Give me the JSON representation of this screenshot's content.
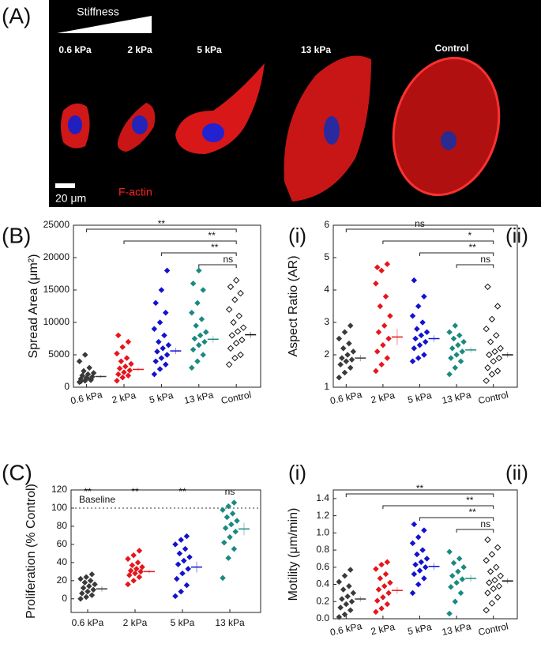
{
  "panel_labels": [
    "(A)",
    "(B)",
    "(C)"
  ],
  "image_panel": {
    "gradient_label": "Stiffness",
    "conditions": [
      "0.6 kPa",
      "2 kPa",
      "5 kPa",
      "13 kPa",
      "Control"
    ],
    "scale_bar": "20 μm",
    "stain": "F-actin"
  },
  "chart_data": [
    {
      "type": "strip",
      "panel": "(i)",
      "y_label": "Spread Area (μm²)",
      "ylim": [
        0,
        25000
      ],
      "yticks": [
        0,
        5000,
        10000,
        15000,
        20000,
        25000
      ],
      "categories": [
        "0.6 kPa",
        "2 kPa",
        "5 kPa",
        "13 kPa",
        "Control"
      ],
      "groups": [
        {
          "color": "#3a3a3a",
          "values": [
            800,
            1000,
            1200,
            1300,
            1500,
            1600,
            1800,
            2000,
            2200,
            2500,
            3000,
            4000,
            5000,
            1100,
            900,
            1400
          ],
          "mean": 1650,
          "error": 200
        },
        {
          "color": "#e8141b",
          "values": [
            1000,
            1500,
            1800,
            2000,
            2300,
            2600,
            2900,
            3200,
            3600,
            4000,
            4500,
            5200,
            6200,
            7000,
            8000
          ],
          "mean": 2750,
          "error": 300
        },
        {
          "color": "#1212d0",
          "values": [
            2000,
            2800,
            3500,
            4000,
            4500,
            5000,
            5500,
            6000,
            6500,
            7000,
            8000,
            9000,
            10000,
            11500,
            13000,
            15000,
            18000
          ],
          "mean": 5600,
          "error": 500
        },
        {
          "color": "#1a8a80",
          "values": [
            3000,
            4000,
            5000,
            5800,
            6500,
            7000,
            7500,
            8000,
            8500,
            9500,
            10500,
            11500,
            13000,
            15000,
            16000,
            18000
          ],
          "mean": 7400,
          "error": 500
        },
        {
          "color": "#111111",
          "open": true,
          "values": [
            3500,
            4500,
            5000,
            6000,
            6800,
            7300,
            8000,
            8600,
            9200,
            10000,
            11000,
            12000,
            13500,
            14500,
            15500,
            16500
          ],
          "mean": 8100,
          "error": 450
        }
      ],
      "comparisons": [
        {
          "from": 0,
          "to": 4,
          "label": "**"
        },
        {
          "from": 1,
          "to": 4,
          "label": "**"
        },
        {
          "from": 2,
          "to": 4,
          "label": "**"
        },
        {
          "from": 3,
          "to": 4,
          "label": "ns"
        }
      ]
    },
    {
      "type": "strip",
      "panel": "(ii)",
      "y_label": "Aspect Ratio (AR)",
      "ylim": [
        1,
        6
      ],
      "yticks": [
        1,
        2,
        3,
        4,
        5,
        6
      ],
      "categories": [
        "0.6 kPa",
        "2 kPa",
        "5 kPa",
        "13 kPa",
        "Control"
      ],
      "groups": [
        {
          "color": "#3a3a3a",
          "values": [
            1.3,
            1.45,
            1.6,
            1.7,
            1.8,
            1.85,
            1.9,
            2.0,
            2.1,
            2.2,
            2.35,
            2.5,
            2.7,
            2.9
          ],
          "mean": 1.9,
          "error": 0.1
        },
        {
          "color": "#e8141b",
          "values": [
            1.5,
            1.7,
            1.9,
            2.1,
            2.3,
            2.5,
            2.7,
            2.9,
            3.2,
            3.5,
            3.8,
            4.2,
            4.6,
            4.8,
            4.7
          ],
          "mean": 2.55,
          "error": 0.25
        },
        {
          "color": "#1212d0",
          "values": [
            1.8,
            1.9,
            2.0,
            2.2,
            2.3,
            2.4,
            2.5,
            2.6,
            2.7,
            2.8,
            3.0,
            3.2,
            3.5,
            3.8,
            4.3
          ],
          "mean": 2.5,
          "error": 0.1
        },
        {
          "color": "#1a8a80",
          "values": [
            1.4,
            1.6,
            1.8,
            1.9,
            2.0,
            2.1,
            2.2,
            2.3,
            2.4,
            2.5,
            2.6,
            2.7,
            2.9
          ],
          "mean": 2.15,
          "error": 0.08
        },
        {
          "color": "#111111",
          "open": true,
          "values": [
            1.2,
            1.4,
            1.5,
            1.6,
            1.8,
            1.9,
            2.0,
            2.1,
            2.2,
            2.4,
            2.6,
            2.8,
            3.1,
            3.5,
            4.1
          ],
          "mean": 2.0,
          "error": 0.08
        }
      ],
      "comparisons": [
        {
          "from": 0,
          "to": 4,
          "label": "ns"
        },
        {
          "from": 1,
          "to": 4,
          "label": "*"
        },
        {
          "from": 2,
          "to": 4,
          "label": "**"
        },
        {
          "from": 3,
          "to": 4,
          "label": "ns"
        }
      ]
    },
    {
      "type": "strip",
      "panel": "(i)",
      "y_label": "Proliferation (% Control)",
      "ylim": [
        -15,
        120
      ],
      "yticks": [
        0,
        20,
        40,
        60,
        80,
        100,
        120
      ],
      "baseline": {
        "value": 100,
        "label": "Baseline"
      },
      "categories": [
        "0.6 kPa",
        "2 kPa",
        "5 kPa",
        "13 kPa"
      ],
      "significance": [
        "**",
        "**",
        "**",
        "ns"
      ],
      "groups": [
        {
          "color": "#3a3a3a",
          "values": [
            0,
            2,
            4,
            6,
            8,
            10,
            12,
            14,
            16,
            18,
            20,
            22,
            24,
            27
          ],
          "mean": 11,
          "error": 3
        },
        {
          "color": "#e8141b",
          "values": [
            16,
            20,
            24,
            26,
            28,
            30,
            31,
            33,
            35,
            37,
            40,
            44,
            48,
            53
          ],
          "mean": 30,
          "error": 2
        },
        {
          "color": "#1212d0",
          "values": [
            3,
            8,
            15,
            22,
            28,
            33,
            38,
            42,
            46,
            50,
            55,
            60,
            65,
            69
          ],
          "mean": 35,
          "error": 6
        },
        {
          "color": "#1a8a80",
          "values": [
            23,
            45,
            55,
            62,
            68,
            74,
            78,
            82,
            86,
            90,
            94,
            98,
            102,
            106
          ],
          "mean": 77,
          "error": 7
        }
      ]
    },
    {
      "type": "strip",
      "panel": "(ii)",
      "y_label": "Motility (μm/min)",
      "ylim": [
        0,
        1.5
      ],
      "yticks": [
        {
          "value": 0,
          "label": "0.0"
        },
        {
          "value": 0.2,
          "label": "0.2"
        },
        {
          "value": 0.4,
          "label": "0.4"
        },
        {
          "value": 0.6,
          "label": "0.6"
        },
        {
          "value": 0.8,
          "label": "0.8"
        },
        {
          "value": 1,
          "label": "1.0"
        },
        {
          "value": 1.2,
          "label": "1.2"
        },
        {
          "value": 1.4,
          "label": "1.4"
        }
      ],
      "categories": [
        "0.6 kPa",
        "2 kPa",
        "5 kPa",
        "13 kPa",
        "Control"
      ],
      "groups": [
        {
          "color": "#3a3a3a",
          "values": [
            0.02,
            0.05,
            0.1,
            0.13,
            0.17,
            0.2,
            0.23,
            0.26,
            0.3,
            0.34,
            0.38,
            0.43,
            0.5,
            0.57
          ],
          "mean": 0.23,
          "error": 0.03
        },
        {
          "color": "#e8141b",
          "values": [
            0.08,
            0.12,
            0.17,
            0.21,
            0.25,
            0.3,
            0.34,
            0.38,
            0.42,
            0.47,
            0.52,
            0.58,
            0.63,
            0.66
          ],
          "mean": 0.33,
          "error": 0.04
        },
        {
          "color": "#1212d0",
          "values": [
            0.3,
            0.4,
            0.47,
            0.52,
            0.56,
            0.6,
            0.63,
            0.66,
            0.7,
            0.75,
            0.8,
            0.88,
            0.95,
            1.03,
            1.1
          ],
          "mean": 0.61,
          "error": 0.04
        },
        {
          "color": "#1a8a80",
          "values": [
            0.06,
            0.2,
            0.3,
            0.37,
            0.42,
            0.46,
            0.5,
            0.55,
            0.6,
            0.65,
            0.7,
            0.78
          ],
          "mean": 0.47,
          "error": 0.04
        },
        {
          "color": "#111111",
          "open": true,
          "values": [
            0.1,
            0.18,
            0.25,
            0.3,
            0.35,
            0.38,
            0.42,
            0.45,
            0.5,
            0.55,
            0.6,
            0.68,
            0.75,
            0.83,
            0.92
          ],
          "mean": 0.44,
          "error": 0.03
        }
      ],
      "comparisons": [
        {
          "from": 0,
          "to": 4,
          "label": "**"
        },
        {
          "from": 1,
          "to": 4,
          "label": "**"
        },
        {
          "from": 2,
          "to": 4,
          "label": "**"
        },
        {
          "from": 3,
          "to": 4,
          "label": "ns"
        }
      ]
    }
  ]
}
